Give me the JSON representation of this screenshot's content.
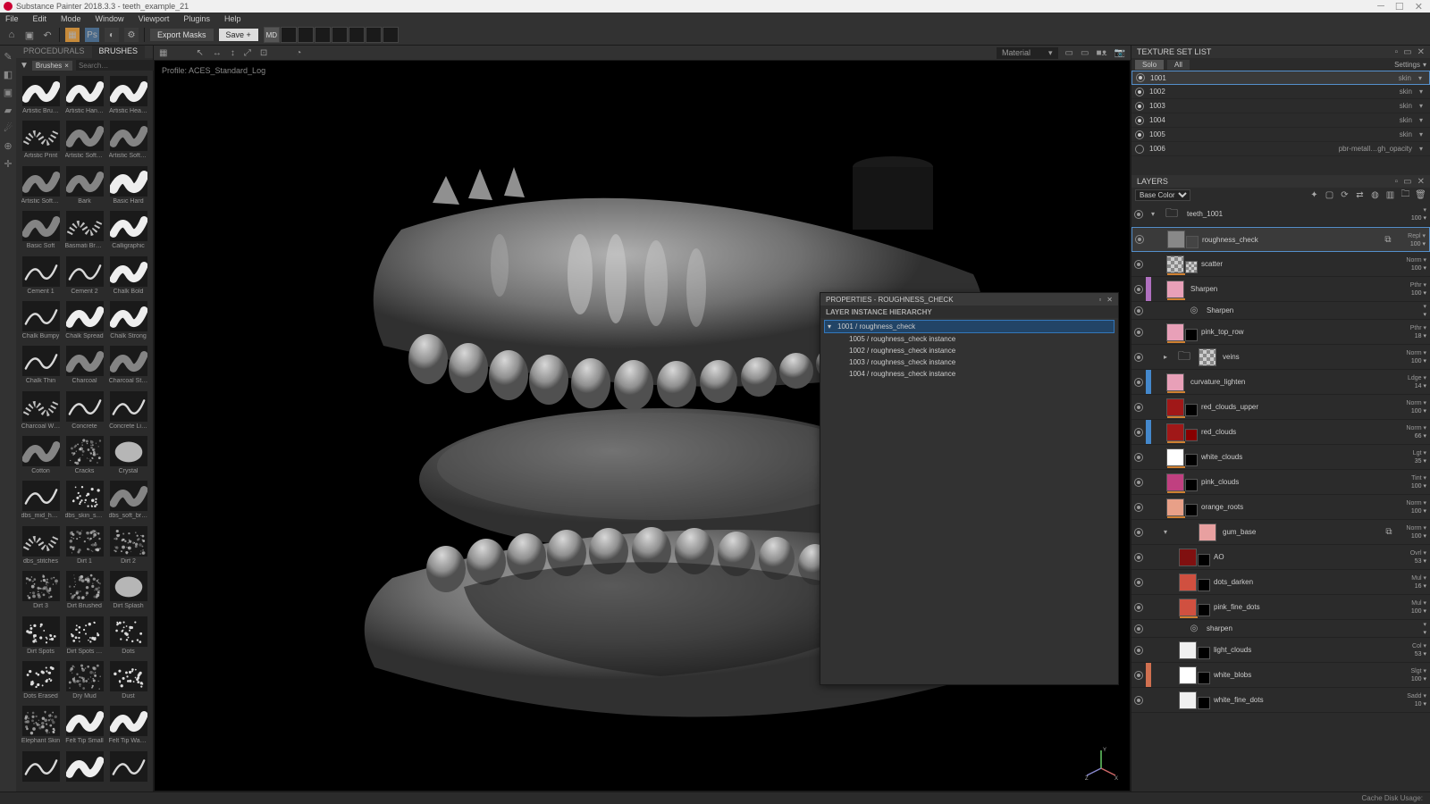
{
  "app": {
    "title": "Substance Painter 2018.3.3 - teeth_example_21",
    "menu": [
      "File",
      "Edit",
      "Mode",
      "Window",
      "Viewport",
      "Plugins",
      "Help"
    ],
    "toolbar": {
      "export_masks": "Export Masks",
      "save": "Save +",
      "md": "MD"
    }
  },
  "brushes": {
    "tabs": {
      "procedurals": "PROCEDURALS",
      "brushes": "BRUSHES"
    },
    "search_chip": "Brushes",
    "search_placeholder": "Search…",
    "items": [
      {
        "label": "Artistic Bru…",
        "kind": "wave_thick"
      },
      {
        "label": "Artistic Han…",
        "kind": "wave_thick"
      },
      {
        "label": "Artistic Hea…",
        "kind": "wave_thick"
      },
      {
        "label": "Artistic Print",
        "kind": "wave_dots"
      },
      {
        "label": "Artistic Soft …",
        "kind": "wave_soft"
      },
      {
        "label": "Artistic Soft …",
        "kind": "wave_soft"
      },
      {
        "label": "Artistic Soft …",
        "kind": "wave_soft"
      },
      {
        "label": "Bark",
        "kind": "wave_soft"
      },
      {
        "label": "Basic Hard",
        "kind": "wave_hard"
      },
      {
        "label": "Basic Soft",
        "kind": "wave_soft"
      },
      {
        "label": "Basmati Bru…",
        "kind": "wave_dots"
      },
      {
        "label": "Calligraphic",
        "kind": "wave_thick"
      },
      {
        "label": "Cement 1",
        "kind": "wave_line"
      },
      {
        "label": "Cement 2",
        "kind": "wave_line"
      },
      {
        "label": "Chalk Bold",
        "kind": "wave_thick"
      },
      {
        "label": "Chalk Bumpy",
        "kind": "wave_line"
      },
      {
        "label": "Chalk Spread",
        "kind": "wave_thick"
      },
      {
        "label": "Chalk Strong",
        "kind": "wave_thick"
      },
      {
        "label": "Chalk Thin",
        "kind": "wave_line"
      },
      {
        "label": "Charcoal",
        "kind": "wave_soft"
      },
      {
        "label": "Charcoal St…",
        "kind": "wave_soft"
      },
      {
        "label": "Charcoal W…",
        "kind": "wave_dots"
      },
      {
        "label": "Concrete",
        "kind": "wave_line"
      },
      {
        "label": "Concrete Li…",
        "kind": "wave_line"
      },
      {
        "label": "Cotton",
        "kind": "wave_soft"
      },
      {
        "label": "Cracks",
        "kind": "noise"
      },
      {
        "label": "Crystal",
        "kind": "blob"
      },
      {
        "label": "dbs_mid_har…",
        "kind": "wave_line"
      },
      {
        "label": "dbs_skin_sp…",
        "kind": "dots"
      },
      {
        "label": "dbs_soft_bru…",
        "kind": "wave_soft"
      },
      {
        "label": "dbs_stitches",
        "kind": "wave_dots"
      },
      {
        "label": "Dirt 1",
        "kind": "noise"
      },
      {
        "label": "Dirt 2",
        "kind": "noise"
      },
      {
        "label": "Dirt 3",
        "kind": "noise"
      },
      {
        "label": "Dirt Brushed",
        "kind": "noise"
      },
      {
        "label": "Dirt Splash",
        "kind": "blob"
      },
      {
        "label": "Dirt Spots",
        "kind": "dots"
      },
      {
        "label": "Dirt Spots …",
        "kind": "dots"
      },
      {
        "label": "Dots",
        "kind": "dots"
      },
      {
        "label": "Dots Erased",
        "kind": "dots"
      },
      {
        "label": "Dry Mud",
        "kind": "noise"
      },
      {
        "label": "Dust",
        "kind": "dots"
      },
      {
        "label": "Elephant Skin",
        "kind": "noise"
      },
      {
        "label": "Felt Tip Small",
        "kind": "wave_thick"
      },
      {
        "label": "Felt Tip Wat…",
        "kind": "wave_thick"
      },
      {
        "label": "",
        "kind": "wave_line"
      },
      {
        "label": "",
        "kind": "wave_thick"
      },
      {
        "label": "",
        "kind": "wave_line"
      }
    ]
  },
  "viewport": {
    "profile": "Profile: ACES_Standard_Log",
    "material_dd": "Material"
  },
  "properties": {
    "title": "PROPERTIES - ROUGHNESS_CHECK",
    "subtitle": "LAYER INSTANCE HIERARCHY",
    "root": "1001 / roughness_check",
    "children": [
      "1005 / roughness_check instance",
      "1002 / roughness_check instance",
      "1003 / roughness_check instance",
      "1004 / roughness_check instance"
    ]
  },
  "texset": {
    "title": "TEXTURE SET LIST",
    "solo": "Solo",
    "all": "All",
    "settings": "Settings",
    "rows": [
      {
        "id": "1001",
        "shader": "skin",
        "on": true,
        "sel": true
      },
      {
        "id": "1002",
        "shader": "skin",
        "on": true,
        "sel": false
      },
      {
        "id": "1003",
        "shader": "skin",
        "on": true,
        "sel": false
      },
      {
        "id": "1004",
        "shader": "skin",
        "on": true,
        "sel": false
      },
      {
        "id": "1005",
        "shader": "skin",
        "on": true,
        "sel": false
      },
      {
        "id": "1006",
        "shader": "pbr-metall…gh_opacity",
        "on": false,
        "sel": false
      }
    ]
  },
  "layers": {
    "title": "LAYERS",
    "channel": "Base Color",
    "items": [
      {
        "type": "folder",
        "name": "teeth_1001",
        "indent": 0,
        "open": true,
        "vis": true,
        "blend": "",
        "op": "100"
      },
      {
        "type": "fill",
        "name": "roughness_check",
        "indent": 1,
        "vis": true,
        "swatch": "#888888",
        "mask": "#444",
        "blend": "Repl",
        "op": "100",
        "sel": true,
        "inst": true
      },
      {
        "type": "fill",
        "name": "scatter",
        "indent": 1,
        "vis": true,
        "swatch": "checker",
        "mask": "checker",
        "blend": "Norm",
        "op": "100",
        "under": true
      },
      {
        "type": "fill",
        "name": "Sharpen",
        "indent": 1,
        "vis": true,
        "swatch": "#e8a0b8",
        "colorbar": "#b070c0",
        "blend": "Pthr",
        "op": "100",
        "under": true
      },
      {
        "type": "effect",
        "name": "Sharpen",
        "indent": 2,
        "vis": true,
        "short": true
      },
      {
        "type": "fill",
        "name": "pink_top_row",
        "indent": 1,
        "vis": true,
        "swatch": "#e8a0b8",
        "mask": "#000",
        "blend": "Pthr",
        "op": "18",
        "under": true
      },
      {
        "type": "folder",
        "name": "veins",
        "indent": 1,
        "vis": true,
        "swatch": "checker",
        "blend": "Norm",
        "op": "100"
      },
      {
        "type": "fill",
        "name": "curvature_lighten",
        "indent": 1,
        "vis": true,
        "swatch": "#e8a0b8",
        "colorbar": "#4488cc",
        "blend": "Ldge",
        "op": "14",
        "under": true
      },
      {
        "type": "fill",
        "name": "red_clouds_upper",
        "indent": 1,
        "vis": true,
        "swatch": "#a01818",
        "mask": "#000",
        "blend": "Norm",
        "op": "100",
        "under": true
      },
      {
        "type": "fill",
        "name": "red_clouds",
        "indent": 1,
        "vis": true,
        "swatch": "#a01818",
        "mask": "#800",
        "colorbar": "#4488cc",
        "blend": "Norm",
        "op": "66",
        "under": true
      },
      {
        "type": "fill",
        "name": "white_clouds",
        "indent": 1,
        "vis": true,
        "swatch": "#ffffff",
        "mask": "#000",
        "blend": "Lgt",
        "op": "35",
        "under": true
      },
      {
        "type": "fill",
        "name": "pink_clouds",
        "indent": 1,
        "vis": true,
        "swatch": "#c04080",
        "mask": "#000",
        "blend": "Tint",
        "op": "100",
        "under": true
      },
      {
        "type": "fill",
        "name": "orange_roots",
        "indent": 1,
        "vis": true,
        "swatch": "#e8a088",
        "mask": "#000",
        "blend": "Norm",
        "op": "100",
        "under": true
      },
      {
        "type": "folder",
        "name": "gum_base",
        "indent": 1,
        "vis": true,
        "swatch": "#e8a0a0",
        "open": true,
        "blend": "Norm",
        "op": "100",
        "inst": true
      },
      {
        "type": "fill",
        "name": "AO",
        "indent": 2,
        "vis": true,
        "swatch": "#801010",
        "mask": "#000",
        "blend": "Ovrl",
        "op": "53"
      },
      {
        "type": "fill",
        "name": "dots_darken",
        "indent": 2,
        "vis": true,
        "swatch": "#d05040",
        "mask": "#000",
        "blend": "Mul",
        "op": "16"
      },
      {
        "type": "fill",
        "name": "pink_fine_dots",
        "indent": 2,
        "vis": true,
        "swatch": "#d05040",
        "mask": "#000",
        "blend": "Mul",
        "op": "100",
        "under": true
      },
      {
        "type": "effect",
        "name": "sharpen",
        "indent": 2,
        "vis": true,
        "short": true
      },
      {
        "type": "fill",
        "name": "light_clouds",
        "indent": 2,
        "vis": true,
        "swatch": "#f0f0f0",
        "mask": "#000",
        "blend": "Col",
        "op": "53"
      },
      {
        "type": "fill",
        "name": "white_blobs",
        "indent": 2,
        "vis": true,
        "swatch": "#ffffff",
        "mask": "#000",
        "colorbar": "#d07050",
        "blend": "Slgt",
        "op": "100"
      },
      {
        "type": "fill",
        "name": "white_fine_dots",
        "indent": 2,
        "vis": true,
        "swatch": "#f0f0f0",
        "mask": "#000",
        "blend": "Sadd",
        "op": "10"
      }
    ]
  },
  "statusbar": "Cache Disk Usage:"
}
